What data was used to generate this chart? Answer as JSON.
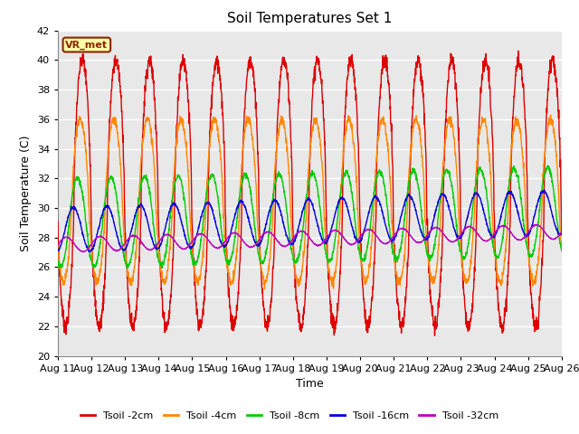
{
  "title": "Soil Temperatures Set 1",
  "xlabel": "Time",
  "ylabel": "Soil Temperature (C)",
  "ylim": [
    20,
    42
  ],
  "xlim": [
    0,
    360
  ],
  "annotation": "VR_met",
  "fig_color": "#ffffff",
  "plot_bg_color": "#e8e8e8",
  "series": {
    "Tsoil -2cm": {
      "color": "#dd0000",
      "amplitude": 9.0,
      "base": 31.0,
      "phase_hours": 2.5,
      "asymmetry": 0.35
    },
    "Tsoil -4cm": {
      "color": "#ff8800",
      "amplitude": 5.5,
      "base": 30.5,
      "phase_hours": 4.0,
      "asymmetry": 0.25
    },
    "Tsoil -8cm": {
      "color": "#00cc00",
      "amplitude": 3.0,
      "base": 29.0,
      "phase_hours": 6.0,
      "asymmetry": 0.1
    },
    "Tsoil -16cm": {
      "color": "#0000dd",
      "amplitude": 1.5,
      "base": 28.5,
      "phase_hours": 9.0,
      "asymmetry": 0.0
    },
    "Tsoil -32cm": {
      "color": "#bb00bb",
      "amplitude": 0.5,
      "base": 27.5,
      "phase_hours": 14.0,
      "asymmetry": 0.0
    }
  },
  "trend": {
    "Tsoil -2cm": 0.0,
    "Tsoil -4cm": 0.0,
    "Tsoil -8cm": 0.05,
    "Tsoil -16cm": 0.08,
    "Tsoil -32cm": 0.06
  },
  "tick_labels": [
    "Aug 11",
    "Aug 12",
    "Aug 13",
    "Aug 14",
    "Aug 15",
    "Aug 16",
    "Aug 17",
    "Aug 18",
    "Aug 19",
    "Aug 20",
    "Aug 21",
    "Aug 22",
    "Aug 23",
    "Aug 24",
    "Aug 25",
    "Aug 26"
  ],
  "tick_positions": [
    0,
    24,
    48,
    72,
    96,
    120,
    144,
    168,
    192,
    216,
    240,
    264,
    288,
    312,
    336,
    360
  ],
  "yticks": [
    20,
    22,
    24,
    26,
    28,
    30,
    32,
    34,
    36,
    38,
    40,
    42
  ]
}
